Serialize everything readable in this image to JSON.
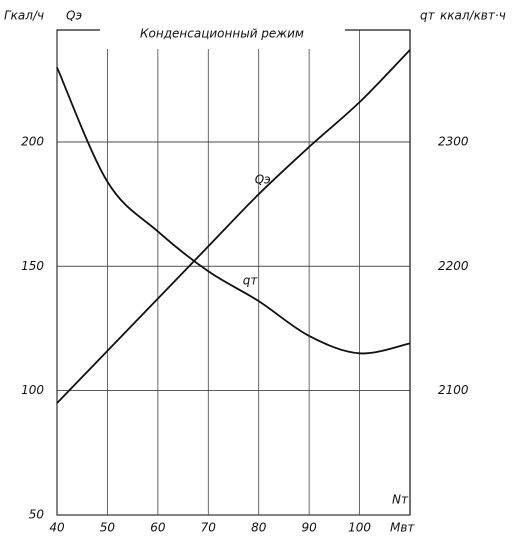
{
  "chart_data": {
    "type": "line",
    "title": "Конденсационный режим",
    "y_label": "Гкал/ч",
    "y_symbol": "Qэ",
    "y2_label": "ккал/квт·ч",
    "y2_symbol": "qт",
    "x_label": "Nт",
    "x_unit": "Мвт",
    "x": [
      40,
      50,
      60,
      70,
      80,
      90,
      100,
      110
    ],
    "series": [
      {
        "name": "Qэ",
        "color": "#111111",
        "values": [
          95,
          116,
          137,
          158,
          179,
          198,
          216,
          237
        ]
      },
      {
        "name": "qт",
        "color": "#111111",
        "axis": "y2",
        "values": [
          2360,
          2268,
          2228,
          2196,
          2172,
          2144,
          2130,
          2138
        ]
      }
    ],
    "xlim": [
      40,
      110
    ],
    "xticks": [
      40,
      50,
      60,
      70,
      80,
      90,
      100
    ],
    "ylim": [
      50,
      245
    ],
    "yticks": [
      50,
      100,
      150,
      200
    ],
    "y2lim": [
      2000,
      2390
    ],
    "y2ticks": [
      2100,
      2200,
      2300
    ],
    "grid": true
  }
}
